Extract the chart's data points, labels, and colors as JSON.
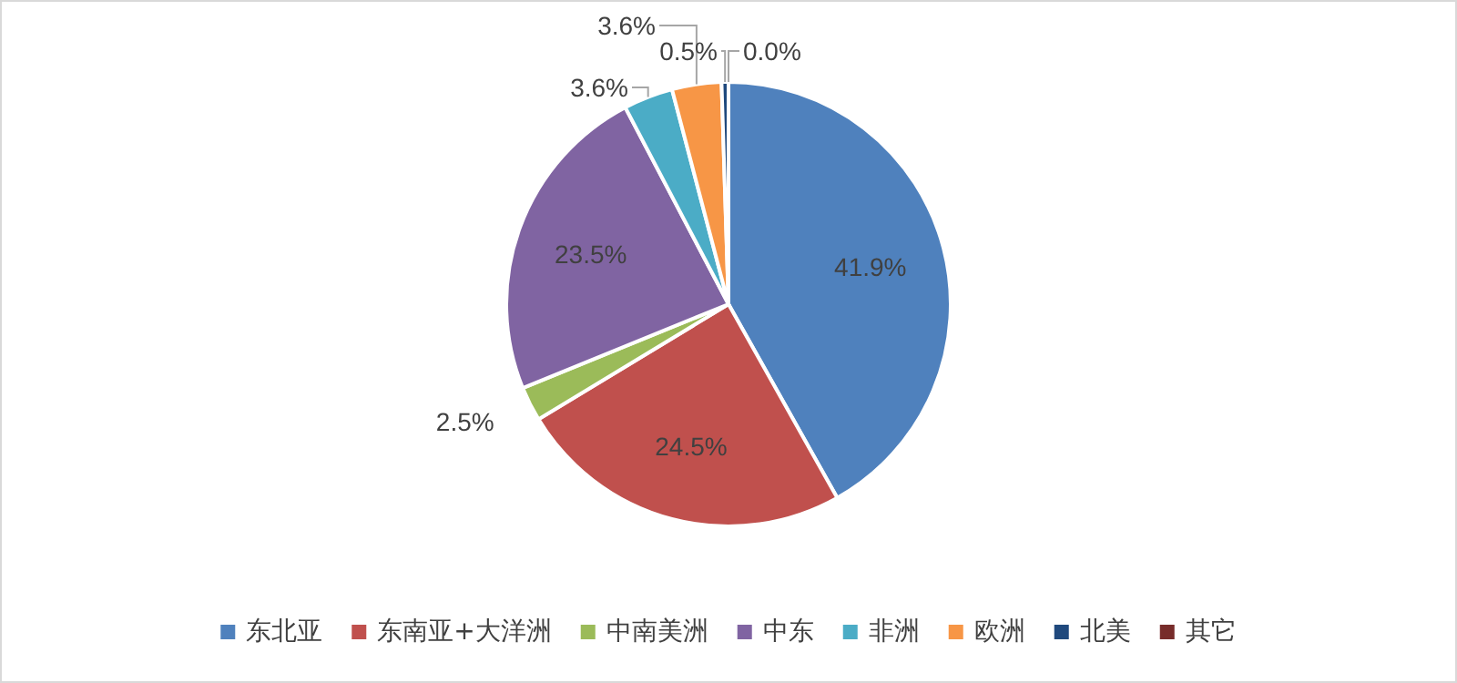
{
  "chart_data": {
    "type": "pie",
    "categories": [
      "东北亚",
      "东南亚+大洋洲",
      "中南美洲",
      "中东",
      "非洲",
      "欧洲",
      "北美",
      "其它"
    ],
    "values": [
      41.9,
      24.5,
      2.5,
      23.5,
      3.6,
      3.6,
      0.5,
      0.0
    ],
    "colors": [
      "#4f81bd",
      "#c0504d",
      "#9bbb59",
      "#8064a2",
      "#4bacc6",
      "#f79646",
      "#1f497d",
      "#772c2a"
    ],
    "value_labels": [
      "41.9%",
      "24.5%",
      "2.5%",
      "23.5%",
      "3.6%",
      "3.6%",
      "0.5%",
      "0.0%"
    ],
    "legend": "bottom"
  }
}
